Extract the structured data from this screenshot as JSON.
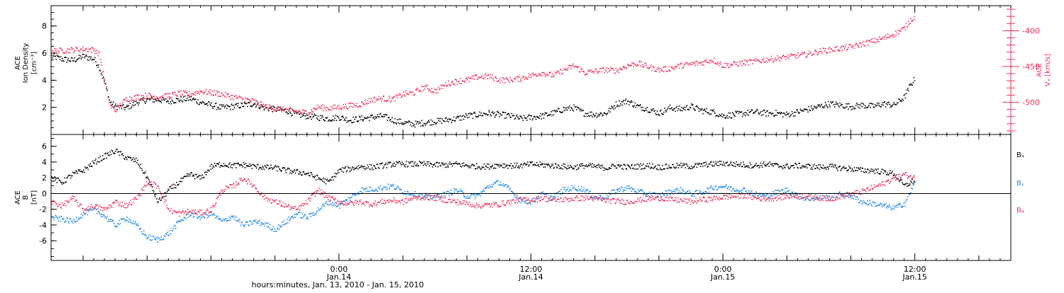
{
  "colors": {
    "density": "#000000",
    "velocity": "#e8345e",
    "bx": "#000000",
    "by": "#1e88e5",
    "bz": "#e8345e",
    "axis": "#000000"
  },
  "time_axis": {
    "label": "hours:minutes, Jan. 13, 2010 - Jan. 15, 2010",
    "start_hour": -27,
    "end_hour": 63,
    "ticks": [
      {
        "hour": 0,
        "time": "0:00",
        "date": "Jan.14"
      },
      {
        "hour": 18,
        "time": "12:00",
        "date": "Jan.14"
      },
      {
        "hour": 36,
        "time": "0:00",
        "date": "Jan.15"
      },
      {
        "hour": 54,
        "time": "12:00",
        "date": "Jan.15"
      }
    ],
    "minor_step_hours": 6
  },
  "chart_data": [
    {
      "type": "scatter",
      "panel": "top",
      "ylabel": [
        "ACE",
        "Ion Density",
        "[cm⁻³]"
      ],
      "ylim": [
        0,
        9.5
      ],
      "yticks": [
        2,
        4,
        6,
        8
      ],
      "right_axis": {
        "ylabel": [
          "ACE",
          "Vₓ [km/s]"
        ],
        "ylim": [
          -545,
          -365
        ],
        "yticks": [
          -400,
          -450,
          -500
        ]
      },
      "series": [
        {
          "key": "density",
          "axis": "left",
          "x": [
            -27,
            -26,
            -25,
            -24,
            -23,
            -22.5,
            -22,
            -21.5,
            -21,
            -20,
            -19,
            -18,
            -17,
            -16,
            -15,
            -14,
            -13,
            -12,
            -11,
            -10,
            -9,
            -8,
            -7,
            -6,
            -5,
            -4,
            -3,
            -2,
            -1,
            0,
            1,
            2,
            3,
            4,
            5,
            6,
            7,
            8,
            9,
            10,
            11,
            12,
            13,
            14,
            15,
            16,
            17,
            18,
            19,
            20,
            21,
            22,
            23,
            24,
            25,
            26,
            27,
            28,
            29,
            30,
            31,
            32,
            33,
            34,
            35,
            36,
            37,
            38,
            39,
            40,
            41,
            42,
            43,
            44,
            45,
            46,
            47,
            48,
            49,
            50,
            51,
            52,
            53,
            53.5,
            54
          ],
          "values": [
            5.8,
            5.6,
            5.5,
            5.8,
            5.6,
            5.0,
            3.8,
            2.4,
            2.1,
            2.0,
            2.4,
            2.6,
            2.6,
            2.5,
            2.6,
            2.7,
            2.4,
            2.2,
            2.0,
            2.1,
            2.2,
            2.3,
            2.0,
            1.9,
            1.8,
            1.5,
            1.4,
            1.3,
            1.2,
            1.3,
            1.1,
            1.2,
            1.3,
            1.4,
            1.1,
            0.9,
            0.8,
            0.9,
            1.0,
            1.1,
            1.2,
            1.4,
            1.5,
            1.6,
            1.5,
            1.4,
            1.2,
            1.3,
            1.4,
            1.6,
            1.9,
            2.0,
            1.6,
            1.5,
            1.6,
            2.3,
            2.5,
            2.1,
            1.9,
            1.6,
            2.0,
            1.9,
            2.1,
            1.8,
            1.7,
            1.4,
            1.5,
            1.6,
            1.7,
            1.6,
            1.6,
            1.5,
            1.7,
            1.9,
            2.1,
            2.3,
            2.2,
            2.1,
            2.2,
            2.1,
            2.3,
            2.2,
            2.8,
            3.6,
            4.2
          ]
        },
        {
          "key": "velocity",
          "axis": "right",
          "x": [
            -27,
            -26,
            -25,
            -24,
            -23,
            -22.5,
            -22,
            -21.5,
            -21,
            -20,
            -19,
            -18,
            -17,
            -16,
            -15,
            -14,
            -13,
            -12,
            -11,
            -10,
            -9,
            -8,
            -7,
            -6,
            -5,
            -4,
            -3,
            -2,
            -1,
            0,
            1,
            2,
            3,
            4,
            5,
            6,
            7,
            8,
            9,
            10,
            11,
            12,
            13,
            14,
            15,
            16,
            17,
            18,
            19,
            20,
            21,
            22,
            23,
            24,
            25,
            26,
            27,
            28,
            29,
            30,
            31,
            32,
            33,
            34,
            35,
            36,
            37,
            38,
            39,
            40,
            41,
            42,
            43,
            44,
            45,
            46,
            47,
            48,
            49,
            50,
            51,
            52,
            53,
            53.5,
            54
          ],
          "values": [
            -428,
            -427,
            -426,
            -425,
            -426,
            -432,
            -470,
            -505,
            -510,
            -495,
            -492,
            -490,
            -492,
            -490,
            -487,
            -488,
            -484,
            -486,
            -488,
            -492,
            -495,
            -498,
            -505,
            -508,
            -510,
            -512,
            -514,
            -506,
            -508,
            -506,
            -504,
            -502,
            -496,
            -494,
            -495,
            -488,
            -486,
            -478,
            -484,
            -474,
            -470,
            -468,
            -464,
            -463,
            -468,
            -468,
            -466,
            -462,
            -458,
            -462,
            -455,
            -448,
            -458,
            -456,
            -454,
            -455,
            -448,
            -445,
            -450,
            -454,
            -452,
            -448,
            -446,
            -444,
            -440,
            -448,
            -446,
            -444,
            -442,
            -440,
            -438,
            -436,
            -434,
            -432,
            -428,
            -426,
            -424,
            -422,
            -418,
            -414,
            -410,
            -404,
            -396,
            -385,
            -380
          ]
        }
      ]
    },
    {
      "type": "scatter",
      "panel": "bottom",
      "ylabel": [
        "ACE",
        "B",
        "[nT]"
      ],
      "ylim": [
        -8.5,
        7.5
      ],
      "yticks": [
        -6,
        -4,
        -2,
        0,
        2,
        4,
        6
      ],
      "zero_line": true,
      "series": [
        {
          "key": "bx",
          "name": "Bₓ",
          "x": [
            -27,
            -26,
            -25,
            -24,
            -23,
            -22,
            -21,
            -20,
            -19,
            -18,
            -17,
            -16,
            -15,
            -14,
            -13,
            -12,
            -11,
            -10,
            -9,
            -8,
            -7,
            -6,
            -5,
            -4,
            -3,
            -2,
            -1,
            0,
            1,
            2,
            3,
            4,
            5,
            6,
            7,
            8,
            9,
            10,
            11,
            12,
            13,
            14,
            15,
            16,
            17,
            18,
            19,
            20,
            21,
            22,
            23,
            24,
            25,
            26,
            27,
            28,
            29,
            30,
            31,
            32,
            33,
            34,
            35,
            36,
            37,
            38,
            39,
            40,
            41,
            42,
            43,
            44,
            45,
            46,
            47,
            48,
            49,
            50,
            51,
            52,
            53,
            54
          ],
          "values": [
            2.0,
            1.5,
            2.5,
            3.0,
            4.0,
            4.8,
            5.5,
            4.6,
            4.2,
            2.0,
            -1.0,
            0.5,
            1.5,
            2.5,
            2.0,
            3.5,
            3.8,
            3.6,
            3.7,
            3.5,
            3.4,
            3.3,
            3.0,
            2.8,
            2.6,
            2.0,
            1.5,
            3.0,
            3.2,
            3.5,
            3.4,
            3.6,
            3.8,
            3.8,
            3.8,
            3.8,
            3.7,
            3.7,
            3.8,
            3.6,
            3.5,
            3.5,
            3.7,
            3.6,
            3.6,
            3.8,
            3.7,
            3.6,
            3.5,
            3.4,
            3.6,
            3.5,
            3.3,
            3.6,
            3.4,
            3.5,
            3.6,
            3.4,
            3.5,
            3.6,
            3.5,
            3.7,
            3.8,
            3.9,
            3.8,
            3.7,
            3.6,
            3.8,
            3.6,
            3.5,
            3.6,
            3.5,
            3.4,
            3.5,
            3.3,
            3.2,
            3.0,
            3.0,
            2.8,
            2.6,
            1.0,
            1.8
          ]
        },
        {
          "key": "by",
          "name": "Bᵧ",
          "x": [
            -27,
            -26,
            -25,
            -24,
            -23,
            -22,
            -21,
            -20,
            -19,
            -18,
            -17,
            -16,
            -15,
            -14,
            -13,
            -12,
            -11,
            -10,
            -9,
            -8,
            -7,
            -6,
            -5,
            -4,
            -3,
            -2,
            -1,
            0,
            1,
            2,
            3,
            4,
            5,
            6,
            7,
            8,
            9,
            10,
            11,
            12,
            13,
            14,
            15,
            16,
            17,
            18,
            19,
            20,
            21,
            22,
            23,
            24,
            25,
            26,
            27,
            28,
            29,
            30,
            31,
            32,
            33,
            34,
            35,
            36,
            37,
            38,
            39,
            40,
            41,
            42,
            43,
            44,
            45,
            46,
            47,
            48,
            49,
            50,
            51,
            52,
            53,
            54
          ],
          "values": [
            -3.0,
            -3.2,
            -3.5,
            -2.5,
            -2.0,
            -2.8,
            -4.0,
            -3.0,
            -4.0,
            -5.5,
            -5.8,
            -5.0,
            -3.5,
            -2.5,
            -3.0,
            -2.5,
            -3.5,
            -2.8,
            -4.0,
            -3.5,
            -3.8,
            -4.5,
            -3.5,
            -2.5,
            -3.0,
            -2.0,
            -1.0,
            -1.5,
            -0.5,
            0.5,
            0.6,
            0.8,
            1.0,
            0.3,
            0.0,
            -0.5,
            -0.3,
            0.0,
            0.5,
            -0.3,
            -0.2,
            1.0,
            1.5,
            0.5,
            -0.8,
            -1.0,
            0.0,
            -0.5,
            0.5,
            0.8,
            0.6,
            -0.5,
            -0.3,
            0.5,
            0.8,
            0.3,
            0.0,
            -0.2,
            0.3,
            0.5,
            0.0,
            0.2,
            0.8,
            1.0,
            0.6,
            0.5,
            0.0,
            -0.3,
            0.2,
            0.5,
            -0.3,
            -0.6,
            -0.5,
            -0.4,
            0.0,
            -0.2,
            -1.0,
            -1.2,
            -1.5,
            -1.8,
            -1.2,
            1.5
          ]
        },
        {
          "key": "bz",
          "name": "Bᵩ",
          "x": [
            -27,
            -26,
            -25,
            -24,
            -23,
            -22,
            -21,
            -20,
            -19,
            -18,
            -17,
            -16,
            -15,
            -14,
            -13,
            -12,
            -11,
            -10,
            -9,
            -8,
            -7,
            -6,
            -5,
            -4,
            -3,
            -2,
            -1,
            0,
            1,
            2,
            3,
            4,
            5,
            6,
            7,
            8,
            9,
            10,
            11,
            12,
            13,
            14,
            15,
            16,
            17,
            18,
            19,
            20,
            21,
            22,
            23,
            24,
            25,
            26,
            27,
            28,
            29,
            30,
            31,
            32,
            33,
            34,
            35,
            36,
            37,
            38,
            39,
            40,
            41,
            42,
            43,
            44,
            45,
            46,
            47,
            48,
            49,
            50,
            51,
            52,
            53,
            54
          ],
          "values": [
            -1.0,
            -1.5,
            -0.5,
            -2.0,
            -1.5,
            -2.0,
            -1.0,
            -1.5,
            -0.5,
            1.5,
            1.0,
            -2.0,
            -2.5,
            -2.2,
            -2.4,
            -2.0,
            0.5,
            1.0,
            2.0,
            1.0,
            -0.5,
            -1.0,
            -1.5,
            -2.0,
            -1.0,
            0.5,
            -0.5,
            -1.0,
            -1.2,
            -1.0,
            -1.3,
            -1.0,
            -0.8,
            -1.0,
            -0.5,
            -0.4,
            -0.5,
            -0.8,
            -1.0,
            -1.2,
            -1.5,
            -1.4,
            -1.3,
            -1.0,
            -0.7,
            -0.8,
            -0.5,
            -0.8,
            -0.7,
            -0.6,
            -0.5,
            -0.6,
            -0.8,
            -0.9,
            -1.0,
            -0.8,
            -0.6,
            -0.5,
            -0.7,
            -0.8,
            -1.0,
            -0.7,
            -0.6,
            -0.4,
            -0.3,
            -0.2,
            -0.5,
            -0.6,
            -0.5,
            -0.3,
            -0.2,
            -0.3,
            -0.5,
            -0.6,
            -0.3,
            0.0,
            0.3,
            0.8,
            1.3,
            2.0,
            2.5,
            2.0
          ]
        }
      ]
    }
  ]
}
